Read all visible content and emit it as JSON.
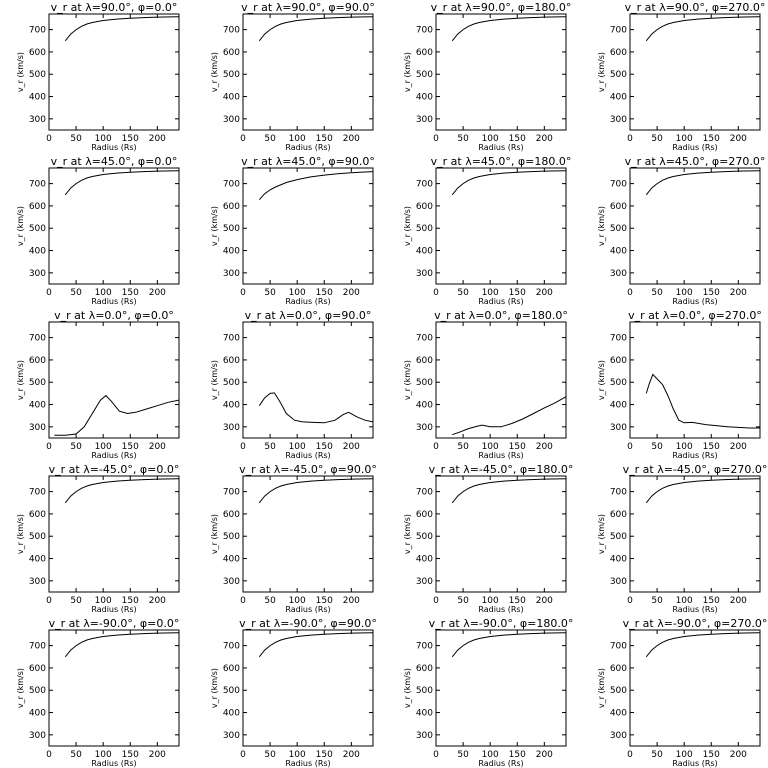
{
  "chart_data": [
    {
      "type": "line",
      "title": "v_r at λ=90.0°, φ=0.0°",
      "xlabel": "Radius (Rs)",
      "ylabel": "v_r (km/s)",
      "xlim": [
        0,
        240
      ],
      "ylim": [
        250,
        770
      ],
      "xticks": [
        0,
        50,
        100,
        150,
        200
      ],
      "yticks": [
        300,
        400,
        500,
        600,
        700
      ],
      "x": [
        30,
        40,
        50,
        60,
        70,
        80,
        100,
        125,
        150,
        175,
        200,
        225,
        240
      ],
      "y": [
        650,
        680,
        700,
        715,
        725,
        732,
        741,
        747,
        751,
        754,
        756,
        757,
        758
      ]
    },
    {
      "type": "line",
      "title": "v_r at λ=90.0°, φ=90.0°",
      "xlabel": "Radius (Rs)",
      "ylabel": "v_r (km/s)",
      "xlim": [
        0,
        240
      ],
      "ylim": [
        250,
        770
      ],
      "xticks": [
        0,
        50,
        100,
        150,
        200
      ],
      "yticks": [
        300,
        400,
        500,
        600,
        700
      ],
      "x": [
        30,
        40,
        50,
        60,
        70,
        80,
        100,
        125,
        150,
        175,
        200,
        225,
        240
      ],
      "y": [
        650,
        680,
        700,
        715,
        725,
        732,
        741,
        747,
        751,
        754,
        756,
        757,
        758
      ]
    },
    {
      "type": "line",
      "title": "v_r at λ=90.0°, φ=180.0°",
      "xlabel": "Radius (Rs)",
      "ylabel": "v_r (km/s)",
      "xlim": [
        0,
        240
      ],
      "ylim": [
        250,
        770
      ],
      "xticks": [
        0,
        50,
        100,
        150,
        200
      ],
      "yticks": [
        300,
        400,
        500,
        600,
        700
      ],
      "x": [
        30,
        40,
        50,
        60,
        70,
        80,
        100,
        125,
        150,
        175,
        200,
        225,
        240
      ],
      "y": [
        650,
        680,
        700,
        715,
        725,
        732,
        741,
        747,
        751,
        754,
        756,
        757,
        758
      ]
    },
    {
      "type": "line",
      "title": "v_r at λ=90.0°, φ=270.0°",
      "xlabel": "Radius (Rs)",
      "ylabel": "v_r (km/s)",
      "xlim": [
        0,
        240
      ],
      "ylim": [
        250,
        770
      ],
      "xticks": [
        0,
        50,
        100,
        150,
        200
      ],
      "yticks": [
        300,
        400,
        500,
        600,
        700
      ],
      "x": [
        30,
        40,
        50,
        60,
        70,
        80,
        100,
        125,
        150,
        175,
        200,
        225,
        240
      ],
      "y": [
        650,
        680,
        700,
        715,
        725,
        732,
        741,
        747,
        751,
        754,
        756,
        757,
        758
      ]
    },
    {
      "type": "line",
      "title": "v_r at λ=45.0°, φ=0.0°",
      "xlabel": "Radius (Rs)",
      "ylabel": "v_r (km/s)",
      "xlim": [
        0,
        240
      ],
      "ylim": [
        250,
        770
      ],
      "xticks": [
        0,
        50,
        100,
        150,
        200
      ],
      "yticks": [
        300,
        400,
        500,
        600,
        700
      ],
      "x": [
        30,
        40,
        50,
        60,
        70,
        80,
        100,
        125,
        150,
        175,
        200,
        225,
        240
      ],
      "y": [
        650,
        680,
        700,
        715,
        725,
        732,
        741,
        747,
        751,
        754,
        756,
        757,
        758
      ]
    },
    {
      "type": "line",
      "title": "v_r at λ=45.0°, φ=90.0°",
      "xlabel": "Radius (Rs)",
      "ylabel": "v_r (km/s)",
      "xlim": [
        0,
        240
      ],
      "ylim": [
        250,
        770
      ],
      "xticks": [
        0,
        50,
        100,
        150,
        200
      ],
      "yticks": [
        300,
        400,
        500,
        600,
        700
      ],
      "x": [
        30,
        40,
        50,
        60,
        80,
        100,
        125,
        150,
        175,
        200,
        225,
        240
      ],
      "y": [
        628,
        655,
        672,
        685,
        705,
        718,
        730,
        738,
        744,
        749,
        752,
        754
      ]
    },
    {
      "type": "line",
      "title": "v_r at λ=45.0°, φ=180.0°",
      "xlabel": "Radius (Rs)",
      "ylabel": "v_r (km/s)",
      "xlim": [
        0,
        240
      ],
      "ylim": [
        250,
        770
      ],
      "xticks": [
        0,
        50,
        100,
        150,
        200
      ],
      "yticks": [
        300,
        400,
        500,
        600,
        700
      ],
      "x": [
        30,
        40,
        50,
        60,
        70,
        80,
        100,
        125,
        150,
        175,
        200,
        225,
        240
      ],
      "y": [
        650,
        680,
        700,
        715,
        725,
        732,
        741,
        747,
        751,
        754,
        756,
        757,
        758
      ]
    },
    {
      "type": "line",
      "title": "v_r at λ=45.0°, φ=270.0°",
      "xlabel": "Radius (Rs)",
      "ylabel": "v_r (km/s)",
      "xlim": [
        0,
        240
      ],
      "ylim": [
        250,
        770
      ],
      "xticks": [
        0,
        50,
        100,
        150,
        200
      ],
      "yticks": [
        300,
        400,
        500,
        600,
        700
      ],
      "x": [
        30,
        40,
        50,
        60,
        70,
        80,
        100,
        125,
        150,
        175,
        200,
        225,
        240
      ],
      "y": [
        650,
        680,
        700,
        715,
        725,
        732,
        741,
        747,
        751,
        754,
        756,
        757,
        758
      ]
    },
    {
      "type": "line",
      "title": "v_r at λ=0.0°, φ=0.0°",
      "xlabel": "Radius (Rs)",
      "ylabel": "v_r (km/s)",
      "xlim": [
        0,
        240
      ],
      "ylim": [
        250,
        770
      ],
      "xticks": [
        0,
        50,
        100,
        150,
        200
      ],
      "yticks": [
        300,
        400,
        500,
        600,
        700
      ],
      "x": [
        10,
        30,
        50,
        65,
        80,
        95,
        105,
        115,
        130,
        145,
        160,
        180,
        200,
        220,
        240
      ],
      "y": [
        262,
        262,
        268,
        300,
        360,
        420,
        440,
        415,
        370,
        360,
        365,
        380,
        395,
        410,
        420
      ]
    },
    {
      "type": "line",
      "title": "v_r at λ=0.0°, φ=90.0°",
      "xlabel": "Radius (Rs)",
      "ylabel": "v_r (km/s)",
      "xlim": [
        0,
        240
      ],
      "ylim": [
        250,
        770
      ],
      "xticks": [
        0,
        50,
        100,
        150,
        200
      ],
      "yticks": [
        300,
        400,
        500,
        600,
        700
      ],
      "x": [
        30,
        40,
        50,
        58,
        70,
        80,
        95,
        110,
        130,
        150,
        170,
        185,
        195,
        210,
        225,
        240
      ],
      "y": [
        395,
        430,
        450,
        452,
        405,
        360,
        330,
        322,
        320,
        318,
        330,
        355,
        365,
        345,
        330,
        322
      ]
    },
    {
      "type": "line",
      "title": "v_r at λ=0.0°, φ=180.0°",
      "xlabel": "Radius (Rs)",
      "ylabel": "v_r (km/s)",
      "xlim": [
        0,
        240
      ],
      "ylim": [
        250,
        770
      ],
      "xticks": [
        0,
        50,
        100,
        150,
        200
      ],
      "yticks": [
        300,
        400,
        500,
        600,
        700
      ],
      "x": [
        30,
        45,
        60,
        75,
        85,
        100,
        120,
        140,
        160,
        180,
        200,
        220,
        240
      ],
      "y": [
        265,
        278,
        292,
        302,
        308,
        300,
        300,
        315,
        335,
        360,
        385,
        408,
        435
      ]
    },
    {
      "type": "line",
      "title": "v_r at λ=0.0°, φ=270.0°",
      "xlabel": "Radius (Rs)",
      "ylabel": "v_r (km/s)",
      "xlim": [
        0,
        240
      ],
      "ylim": [
        250,
        770
      ],
      "xticks": [
        0,
        50,
        100,
        150,
        200
      ],
      "yticks": [
        300,
        400,
        500,
        600,
        700
      ],
      "x": [
        30,
        35,
        42,
        50,
        60,
        70,
        80,
        90,
        100,
        115,
        140,
        180,
        220,
        240
      ],
      "y": [
        450,
        490,
        535,
        515,
        490,
        440,
        380,
        330,
        318,
        320,
        310,
        300,
        295,
        295
      ]
    },
    {
      "type": "line",
      "title": "v_r at λ=-45.0°, φ=0.0°",
      "xlabel": "Radius (Rs)",
      "ylabel": "v_r (km/s)",
      "xlim": [
        0,
        240
      ],
      "ylim": [
        250,
        770
      ],
      "xticks": [
        0,
        50,
        100,
        150,
        200
      ],
      "yticks": [
        300,
        400,
        500,
        600,
        700
      ],
      "x": [
        30,
        40,
        50,
        60,
        70,
        80,
        100,
        125,
        150,
        175,
        200,
        225,
        240
      ],
      "y": [
        650,
        680,
        700,
        715,
        725,
        732,
        741,
        747,
        751,
        754,
        756,
        757,
        758
      ]
    },
    {
      "type": "line",
      "title": "v_r at λ=-45.0°, φ=90.0°",
      "xlabel": "Radius (Rs)",
      "ylabel": "v_r (km/s)",
      "xlim": [
        0,
        240
      ],
      "ylim": [
        250,
        770
      ],
      "xticks": [
        0,
        50,
        100,
        150,
        200
      ],
      "yticks": [
        300,
        400,
        500,
        600,
        700
      ],
      "x": [
        30,
        40,
        50,
        60,
        70,
        80,
        100,
        125,
        150,
        175,
        200,
        225,
        240
      ],
      "y": [
        650,
        680,
        700,
        715,
        725,
        732,
        741,
        747,
        751,
        754,
        756,
        757,
        758
      ]
    },
    {
      "type": "line",
      "title": "v_r at λ=-45.0°, φ=180.0°",
      "xlabel": "Radius (Rs)",
      "ylabel": "v_r (km/s)",
      "xlim": [
        0,
        240
      ],
      "ylim": [
        250,
        770
      ],
      "xticks": [
        0,
        50,
        100,
        150,
        200
      ],
      "yticks": [
        300,
        400,
        500,
        600,
        700
      ],
      "x": [
        30,
        40,
        50,
        60,
        70,
        80,
        100,
        125,
        150,
        175,
        200,
        225,
        240
      ],
      "y": [
        650,
        680,
        700,
        715,
        725,
        732,
        741,
        747,
        751,
        754,
        756,
        757,
        758
      ]
    },
    {
      "type": "line",
      "title": "v_r at λ=-45.0°, φ=270.0°",
      "xlabel": "Radius (Rs)",
      "ylabel": "v_r (km/s)",
      "xlim": [
        0,
        240
      ],
      "ylim": [
        250,
        770
      ],
      "xticks": [
        0,
        50,
        100,
        150,
        200
      ],
      "yticks": [
        300,
        400,
        500,
        600,
        700
      ],
      "x": [
        30,
        40,
        50,
        60,
        70,
        80,
        100,
        125,
        150,
        175,
        200,
        225,
        240
      ],
      "y": [
        650,
        680,
        700,
        715,
        725,
        732,
        741,
        747,
        751,
        754,
        756,
        757,
        758
      ]
    },
    {
      "type": "line",
      "title": "v_r at λ=-90.0°, φ=0.0°",
      "xlabel": "Radius (Rs)",
      "ylabel": "v_r (km/s)",
      "xlim": [
        0,
        240
      ],
      "ylim": [
        250,
        770
      ],
      "xticks": [
        0,
        50,
        100,
        150,
        200
      ],
      "yticks": [
        300,
        400,
        500,
        600,
        700
      ],
      "x": [
        30,
        40,
        50,
        60,
        70,
        80,
        100,
        125,
        150,
        175,
        200,
        225,
        240
      ],
      "y": [
        650,
        680,
        700,
        715,
        725,
        732,
        741,
        747,
        751,
        754,
        756,
        757,
        758
      ]
    },
    {
      "type": "line",
      "title": "v_r at λ=-90.0°, φ=90.0°",
      "xlabel": "Radius (Rs)",
      "ylabel": "v_r (km/s)",
      "xlim": [
        0,
        240
      ],
      "ylim": [
        250,
        770
      ],
      "xticks": [
        0,
        50,
        100,
        150,
        200
      ],
      "yticks": [
        300,
        400,
        500,
        600,
        700
      ],
      "x": [
        30,
        40,
        50,
        60,
        70,
        80,
        100,
        125,
        150,
        175,
        200,
        225,
        240
      ],
      "y": [
        650,
        680,
        700,
        715,
        725,
        732,
        741,
        747,
        751,
        754,
        756,
        757,
        758
      ]
    },
    {
      "type": "line",
      "title": "v_r at λ=-90.0°, φ=180.0°",
      "xlabel": "Radius (Rs)",
      "ylabel": "v_r (km/s)",
      "xlim": [
        0,
        240
      ],
      "ylim": [
        250,
        770
      ],
      "xticks": [
        0,
        50,
        100,
        150,
        200
      ],
      "yticks": [
        300,
        400,
        500,
        600,
        700
      ],
      "x": [
        30,
        40,
        50,
        60,
        70,
        80,
        100,
        125,
        150,
        175,
        200,
        225,
        240
      ],
      "y": [
        650,
        680,
        700,
        715,
        725,
        732,
        741,
        747,
        751,
        754,
        756,
        757,
        758
      ]
    },
    {
      "type": "line",
      "title": "v_r at λ=-90.0°, φ=270.0°",
      "xlabel": "Radius (Rs)",
      "ylabel": "v_r (km/s)",
      "xlim": [
        0,
        240
      ],
      "ylim": [
        250,
        770
      ],
      "xticks": [
        0,
        50,
        100,
        150,
        200
      ],
      "yticks": [
        300,
        400,
        500,
        600,
        700
      ],
      "x": [
        30,
        40,
        50,
        60,
        70,
        80,
        100,
        125,
        150,
        175,
        200,
        225,
        240
      ],
      "y": [
        650,
        680,
        700,
        715,
        725,
        732,
        741,
        747,
        751,
        754,
        756,
        757,
        758
      ]
    }
  ]
}
